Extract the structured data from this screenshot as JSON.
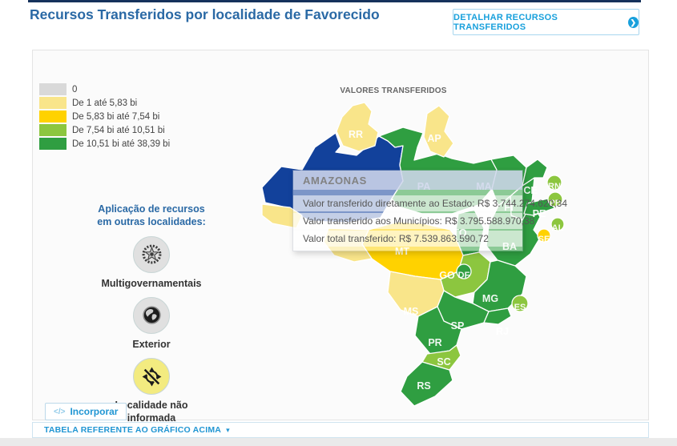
{
  "header": {
    "title": "Recursos Transferidos por localidade de Favorecido",
    "detail_button_label": "DETALHAR RECURSOS TRANSFERIDOS",
    "detail_button_chevron": "❯"
  },
  "legend": {
    "items": [
      {
        "label": "0",
        "color": "#d9d9d9"
      },
      {
        "label": "De 1 até 5,83 bi",
        "color": "#f9e58a"
      },
      {
        "label": "De 5,83 bi até 7,54 bi",
        "color": "#ffd200"
      },
      {
        "label": "De 7,54 bi até 10,51 bi",
        "color": "#8cc63f"
      },
      {
        "label": "De 10,51 bi até 38,39 bi",
        "color": "#2f9e41"
      }
    ]
  },
  "aside": {
    "heading_line1": "Aplicação de recursos",
    "heading_line2": "em outras localidades:",
    "items": [
      {
        "label": "Multigovernamentais",
        "icon": "emblem-star-icon",
        "circle_color": "#e0e0e0"
      },
      {
        "label": "Exterior",
        "icon": "globe-icon",
        "circle_color": "#e0e0e0"
      },
      {
        "label": "Localidade não informada",
        "icon": "no-location-icon",
        "circle_color": "#f3eb80"
      }
    ]
  },
  "map": {
    "title": "VALORES TRANSFERIDOS",
    "colors": {
      "none": "#d9d9d9",
      "band1": "#f9e58a",
      "band2": "#ffd200",
      "band3": "#8cc63f",
      "band4": "#2f9e41",
      "highlight": "#12419b"
    },
    "states": [
      {
        "code": "AM",
        "band": "highlight",
        "show_label": false
      },
      {
        "code": "PA",
        "band": "band4",
        "show_label": true
      },
      {
        "code": "MA",
        "band": "band4",
        "show_label": true
      },
      {
        "code": "PI",
        "band": "band4",
        "show_label": true
      },
      {
        "code": "TO",
        "band": "band4",
        "show_label": true
      },
      {
        "code": "BA",
        "band": "band4",
        "show_label": true
      },
      {
        "code": "MT",
        "band": "band2",
        "show_label": true
      },
      {
        "code": "RO",
        "band": "band1",
        "show_label": false
      },
      {
        "code": "AC",
        "band": "band1",
        "show_label": false
      },
      {
        "code": "GO",
        "band": "band3",
        "show_label": true
      },
      {
        "code": "MG",
        "band": "band4",
        "show_label": true
      },
      {
        "code": "MS",
        "band": "band1",
        "show_label": true
      },
      {
        "code": "SP",
        "band": "band4",
        "show_label": true
      },
      {
        "code": "RJ",
        "band": "band4",
        "show_label": true
      },
      {
        "code": "PR",
        "band": "band4",
        "show_label": true
      },
      {
        "code": "SC",
        "band": "band3",
        "show_label": true
      },
      {
        "code": "RS",
        "band": "band4",
        "show_label": true
      },
      {
        "code": "CE",
        "band": "band4",
        "show_label": true
      },
      {
        "code": "PE",
        "band": "band4",
        "show_label": true
      },
      {
        "code": "RR",
        "band": "band1",
        "show_label": true
      },
      {
        "code": "AP",
        "band": "band1",
        "show_label": true
      },
      {
        "code": "RN",
        "band": "band3",
        "show_label": true
      },
      {
        "code": "PB",
        "band": "band3",
        "show_label": true
      },
      {
        "code": "AL",
        "band": "band3",
        "show_label": true
      },
      {
        "code": "SE",
        "band": "band2",
        "show_label": true
      },
      {
        "code": "DF",
        "band": "band4",
        "show_label": true
      },
      {
        "code": "ES",
        "band": "band3",
        "show_label": true
      }
    ]
  },
  "tooltip": {
    "title": "AMAZONAS",
    "rows": [
      "Valor transferido diretamente ao Estado: R$ 3.744.274.620,34",
      "Valor transferido aos Municípios: R$ 3.795.588.970,38",
      "Valor total transferido: R$ 7.539.863.590,72"
    ]
  },
  "embed": {
    "icon_text": "</>",
    "label": "Incorporar"
  },
  "table_bar": {
    "label": "TABELA REFERENTE AO GRÁFICO ACIMA",
    "caret": "▾"
  }
}
